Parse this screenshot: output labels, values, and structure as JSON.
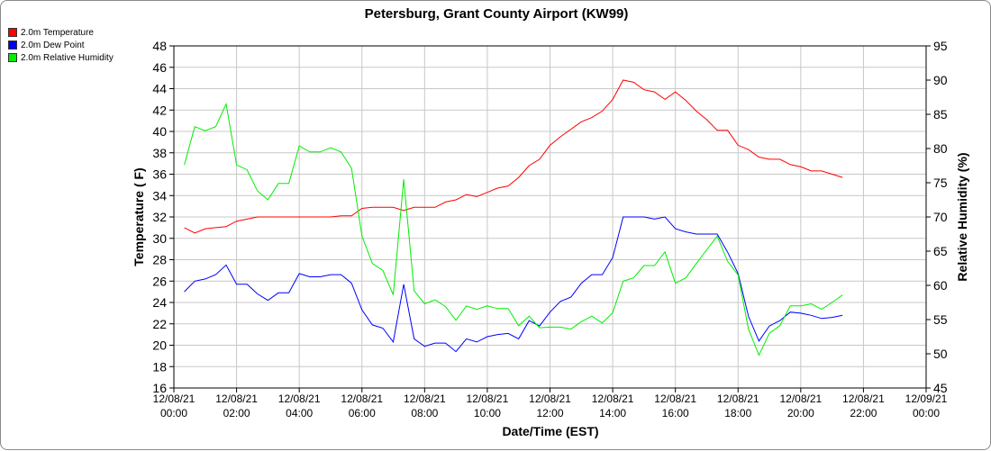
{
  "chart_data": {
    "type": "line",
    "title": "Petersburg, Grant County Airport (KW99)",
    "xlabel": "Date/Time (EST)",
    "ylabel_left": "Temperature ( F)",
    "ylabel_right": "Relative Humidity (%)",
    "ylim_left": [
      16,
      48
    ],
    "ylim_right": [
      45,
      95
    ],
    "yticks_left": [
      "16",
      "18",
      "20",
      "22",
      "24",
      "26",
      "28",
      "30",
      "32",
      "34",
      "36",
      "38",
      "40",
      "42",
      "44",
      "46",
      "48"
    ],
    "yticks_right": [
      "45",
      "50",
      "55",
      "60",
      "65",
      "70",
      "75",
      "80",
      "85",
      "90",
      "95"
    ],
    "x_ticks": [
      {
        "date": "12/08/21",
        "time": "00:00"
      },
      {
        "date": "12/08/21",
        "time": "02:00"
      },
      {
        "date": "12/08/21",
        "time": "04:00"
      },
      {
        "date": "12/08/21",
        "time": "06:00"
      },
      {
        "date": "12/08/21",
        "time": "08:00"
      },
      {
        "date": "12/08/21",
        "time": "10:00"
      },
      {
        "date": "12/08/21",
        "time": "12:00"
      },
      {
        "date": "12/08/21",
        "time": "14:00"
      },
      {
        "date": "12/08/21",
        "time": "16:00"
      },
      {
        "date": "12/08/21",
        "time": "18:00"
      },
      {
        "date": "12/08/21",
        "time": "20:00"
      },
      {
        "date": "12/08/21",
        "time": "22:00"
      },
      {
        "date": "12/09/21",
        "time": "00:00"
      }
    ],
    "grid": true,
    "legend_position": "top-left",
    "series": [
      {
        "name": "2.0m Temperature",
        "axis": "left",
        "color": "#ff0000",
        "x": [
          "00:20",
          "00:40",
          "01:00",
          "01:20",
          "01:40",
          "02:00",
          "02:20",
          "02:40",
          "03:00",
          "03:20",
          "03:40",
          "04:00",
          "04:20",
          "04:40",
          "05:00",
          "05:20",
          "05:40",
          "06:00",
          "06:20",
          "06:40",
          "07:00",
          "07:20",
          "07:40",
          "08:00",
          "08:20",
          "08:40",
          "09:00",
          "09:20",
          "09:40",
          "10:00",
          "10:20",
          "10:40",
          "11:00",
          "11:20",
          "11:40",
          "12:00",
          "12:20",
          "12:40",
          "13:00",
          "13:20",
          "13:40",
          "14:00",
          "14:20",
          "14:40",
          "15:00",
          "15:20",
          "15:40",
          "16:00",
          "16:20",
          "16:40",
          "17:00",
          "17:20",
          "17:40",
          "18:00",
          "18:20",
          "18:40",
          "19:00",
          "19:20",
          "19:40",
          "20:00",
          "20:20",
          "20:40",
          "21:00",
          "21:20"
        ],
        "values": [
          31.0,
          30.5,
          30.9,
          31.0,
          31.1,
          31.6,
          31.8,
          32.0,
          32.0,
          32.0,
          32.0,
          32.0,
          32.0,
          32.0,
          32.0,
          32.1,
          32.1,
          32.8,
          32.9,
          32.9,
          32.9,
          32.6,
          32.9,
          32.9,
          32.9,
          33.4,
          33.6,
          34.1,
          33.9,
          34.3,
          34.7,
          34.9,
          35.7,
          36.8,
          37.4,
          38.7,
          39.5,
          40.2,
          40.9,
          41.3,
          41.9,
          43.0,
          44.8,
          44.6,
          43.9,
          43.7,
          43.0,
          43.7,
          42.9,
          41.9,
          41.1,
          40.1,
          40.1,
          38.7,
          38.3,
          37.6,
          37.4,
          37.4,
          36.9,
          36.7,
          36.3,
          36.3,
          36.0,
          35.7
        ]
      },
      {
        "name": "2.0m Dew Point",
        "axis": "left",
        "color": "#0000ff",
        "x": [
          "00:20",
          "00:40",
          "01:00",
          "01:20",
          "01:40",
          "02:00",
          "02:20",
          "02:40",
          "03:00",
          "03:20",
          "03:40",
          "04:00",
          "04:20",
          "04:40",
          "05:00",
          "05:20",
          "05:40",
          "06:00",
          "06:20",
          "06:40",
          "07:00",
          "07:20",
          "07:40",
          "08:00",
          "08:20",
          "08:40",
          "09:00",
          "09:20",
          "09:40",
          "10:00",
          "10:20",
          "10:40",
          "11:00",
          "11:20",
          "11:40",
          "12:00",
          "12:20",
          "12:40",
          "13:00",
          "13:20",
          "13:40",
          "14:00",
          "14:20",
          "14:40",
          "15:00",
          "15:20",
          "15:40",
          "16:00",
          "16:20",
          "16:40",
          "17:00",
          "17:20",
          "17:40",
          "18:00",
          "18:20",
          "18:40",
          "19:00",
          "19:20",
          "19:40",
          "20:00",
          "20:20",
          "20:40",
          "21:00",
          "21:20"
        ],
        "values": [
          25.0,
          26.0,
          26.2,
          26.6,
          27.5,
          25.7,
          25.7,
          24.8,
          24.2,
          24.9,
          24.9,
          26.7,
          26.4,
          26.4,
          26.6,
          26.6,
          25.8,
          23.3,
          21.9,
          21.6,
          20.3,
          25.7,
          20.6,
          19.9,
          20.2,
          20.2,
          19.4,
          20.6,
          20.3,
          20.8,
          21.0,
          21.1,
          20.6,
          22.3,
          21.8,
          23.1,
          24.1,
          24.5,
          25.8,
          26.6,
          26.6,
          28.2,
          32.0,
          32.0,
          32.0,
          31.8,
          32.0,
          30.9,
          30.6,
          30.4,
          30.4,
          30.4,
          28.7,
          26.7,
          22.7,
          20.4,
          21.8,
          22.3,
          23.1,
          23.0,
          22.8,
          22.5,
          22.6,
          22.8
        ]
      },
      {
        "name": "2.0m Relative Humidity",
        "axis": "right",
        "color": "#00ee00",
        "x": [
          "00:20",
          "00:40",
          "01:00",
          "01:20",
          "01:40",
          "02:00",
          "02:20",
          "02:40",
          "03:00",
          "03:20",
          "03:40",
          "04:00",
          "04:20",
          "04:40",
          "05:00",
          "05:20",
          "05:40",
          "06:00",
          "06:20",
          "06:40",
          "07:00",
          "07:20",
          "07:40",
          "08:00",
          "08:20",
          "08:40",
          "09:00",
          "09:20",
          "09:40",
          "10:00",
          "10:20",
          "10:40",
          "11:00",
          "11:20",
          "11:40",
          "12:00",
          "12:20",
          "12:40",
          "13:00",
          "13:20",
          "13:40",
          "14:00",
          "14:20",
          "14:40",
          "15:00",
          "15:20",
          "15:40",
          "16:00",
          "16:20",
          "16:40",
          "17:00",
          "17:20",
          "17:40",
          "18:00",
          "18:20",
          "18:40",
          "19:00",
          "19:20",
          "19:40",
          "20:00",
          "20:20",
          "20:40",
          "21:00",
          "21:20"
        ],
        "values": [
          77.6,
          83.2,
          82.6,
          83.2,
          86.5,
          77.6,
          76.9,
          73.8,
          72.5,
          74.9,
          74.9,
          80.4,
          79.5,
          79.5,
          80.1,
          79.5,
          77.1,
          67.2,
          63.2,
          62.2,
          58.6,
          75.5,
          59.2,
          57.3,
          57.9,
          56.9,
          54.9,
          57.0,
          56.5,
          57.0,
          56.6,
          56.6,
          54.1,
          55.5,
          53.8,
          53.9,
          53.9,
          53.6,
          54.7,
          55.5,
          54.5,
          56.0,
          60.6,
          61.1,
          62.9,
          62.9,
          64.9,
          60.3,
          61.1,
          63.2,
          65.2,
          67.2,
          63.5,
          61.5,
          53.6,
          49.8,
          53.0,
          54.1,
          57.0,
          57.0,
          57.3,
          56.5,
          57.5,
          58.6
        ]
      }
    ]
  }
}
